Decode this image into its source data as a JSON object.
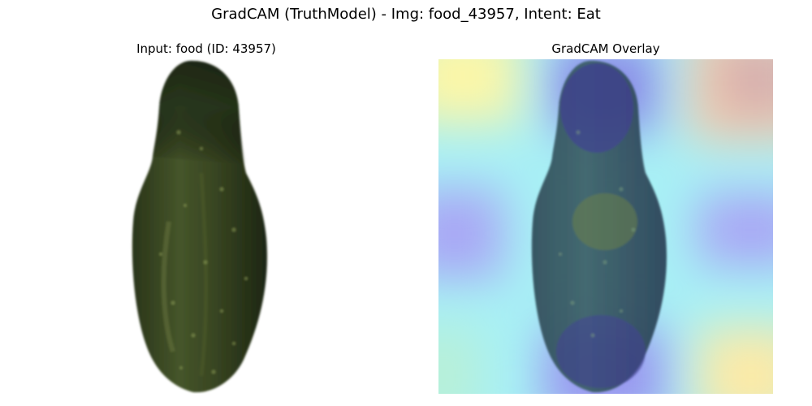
{
  "figure": {
    "title": "GradCAM (TruthModel) - Img: food_43957, Intent: Eat"
  },
  "panels": [
    {
      "title": "Input: food (ID: 43957)",
      "image": "cucumber-photo"
    },
    {
      "title": "GradCAM Overlay",
      "image": "cucumber-gradcam-heatmap-overlay"
    }
  ],
  "colors": {
    "background": "#ffffff",
    "cucumber_dark": "#1f2a17",
    "cucumber_mid": "#3b4a24",
    "cucumber_light": "#5a6a35",
    "heat_yellow": "#fbf6a8",
    "heat_cyan": "#a8f0f5",
    "heat_blue": "#a9a8f5",
    "heat_red": "#d4b0b0"
  }
}
